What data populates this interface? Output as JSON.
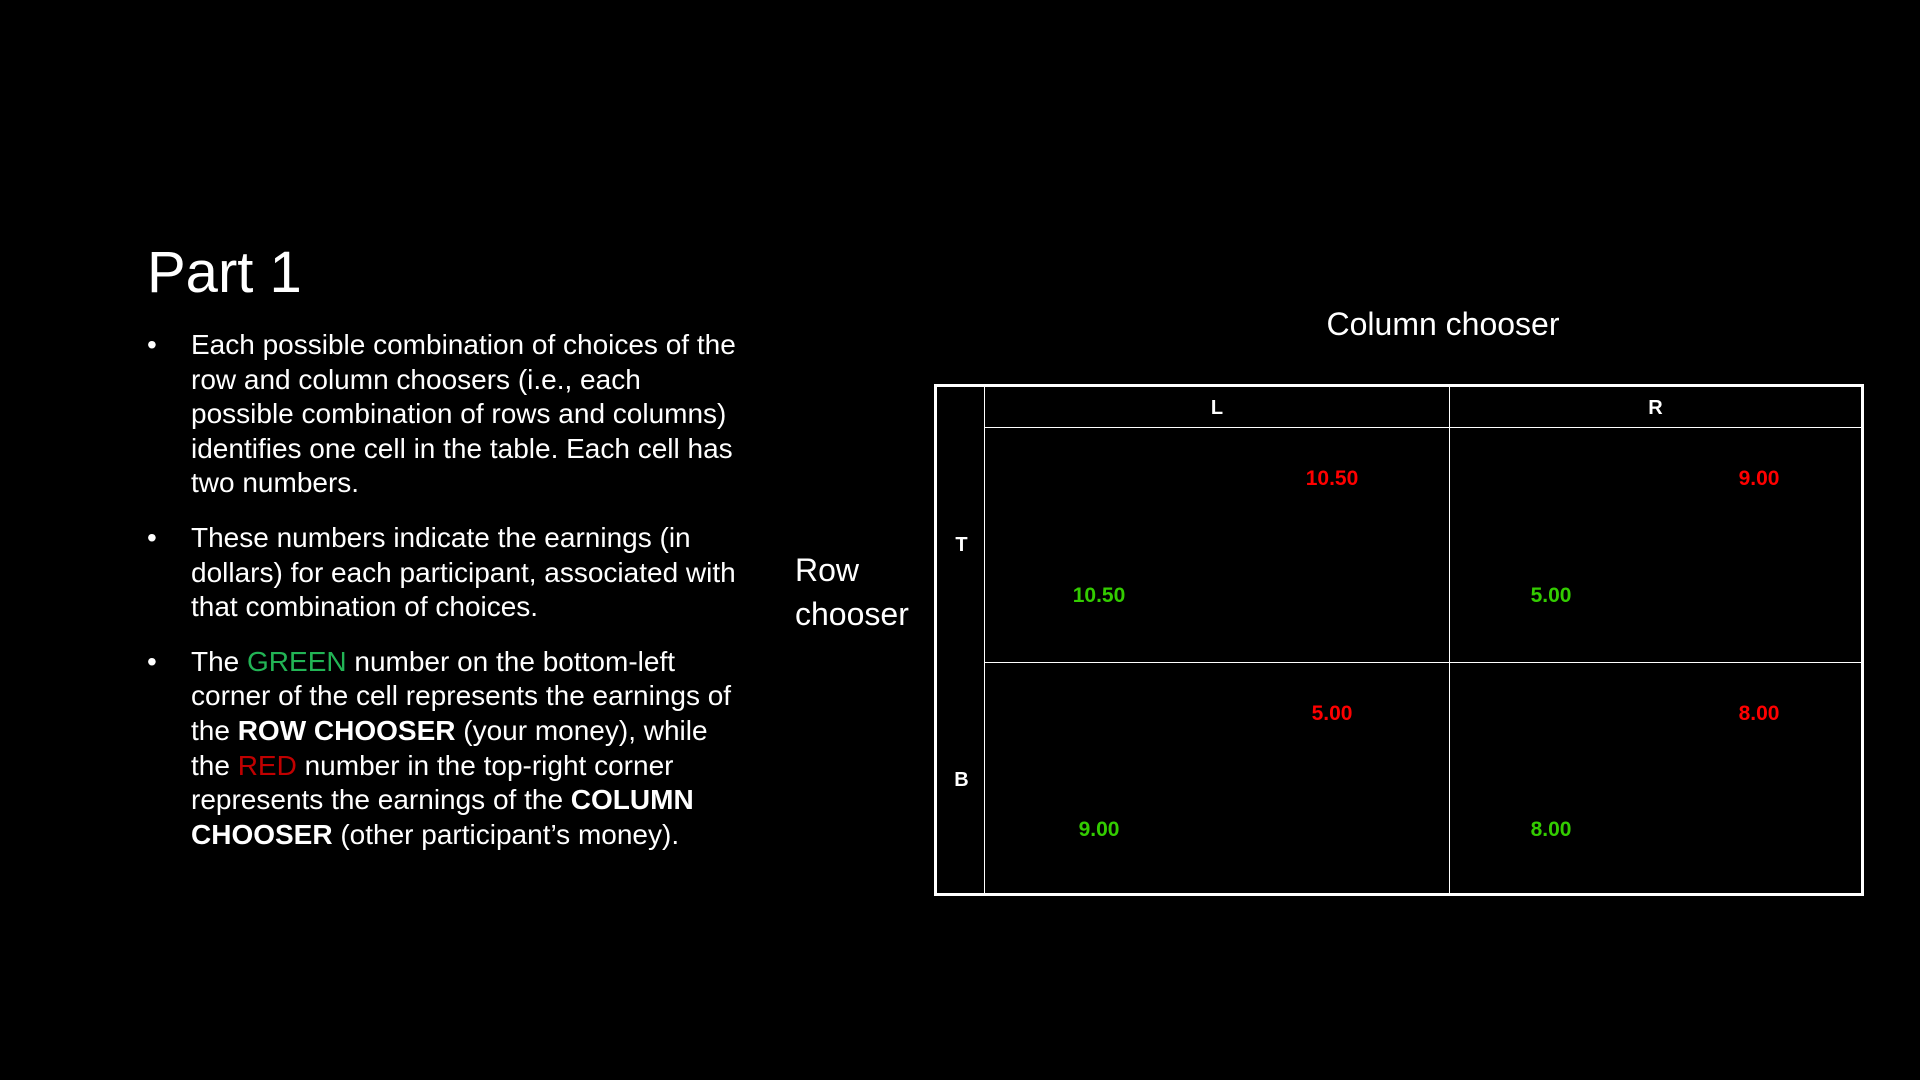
{
  "slide": {
    "title": "Part 1",
    "bullets": {
      "b1": "Each possible combination of choices of the row and column choosers (i.e., each possible combination of rows and columns) identifies one cell in the table. Each cell has two numbers.",
      "b2": "These numbers indicate the earnings (in dollars) for each participant, associated with that combination of choices.",
      "b3": {
        "t1": "The ",
        "green": "GREEN",
        "t2": " number on the bottom-left corner of the cell represents the earnings of the ",
        "row_chooser": "ROW CHOOSER",
        "t3": " (your money), while the ",
        "red": "RED",
        "t4": " number in the top-right corner represents the earnings of the ",
        "column_chooser": "COLUMN CHOOSER",
        "t5": " (other participant’s money)."
      }
    },
    "bullet_symbol": "•"
  },
  "matrix": {
    "column_label": "Column chooser",
    "row_label_line1": "Row",
    "row_label_line2": "chooser",
    "columns": [
      "L",
      "R"
    ],
    "rows": [
      "T",
      "B"
    ],
    "cells": {
      "TL": {
        "row_payoff": "10.50",
        "column_payoff": "10.50"
      },
      "TR": {
        "row_payoff": "5.00",
        "column_payoff": "9.00"
      },
      "BL": {
        "row_payoff": "9.00",
        "column_payoff": "5.00"
      },
      "BR": {
        "row_payoff": "8.00",
        "column_payoff": "8.00"
      }
    },
    "colors": {
      "row_payoff": "#33cc00",
      "column_payoff": "#ff0000",
      "green_word": "#22b455",
      "red_word": "#c00000"
    }
  }
}
